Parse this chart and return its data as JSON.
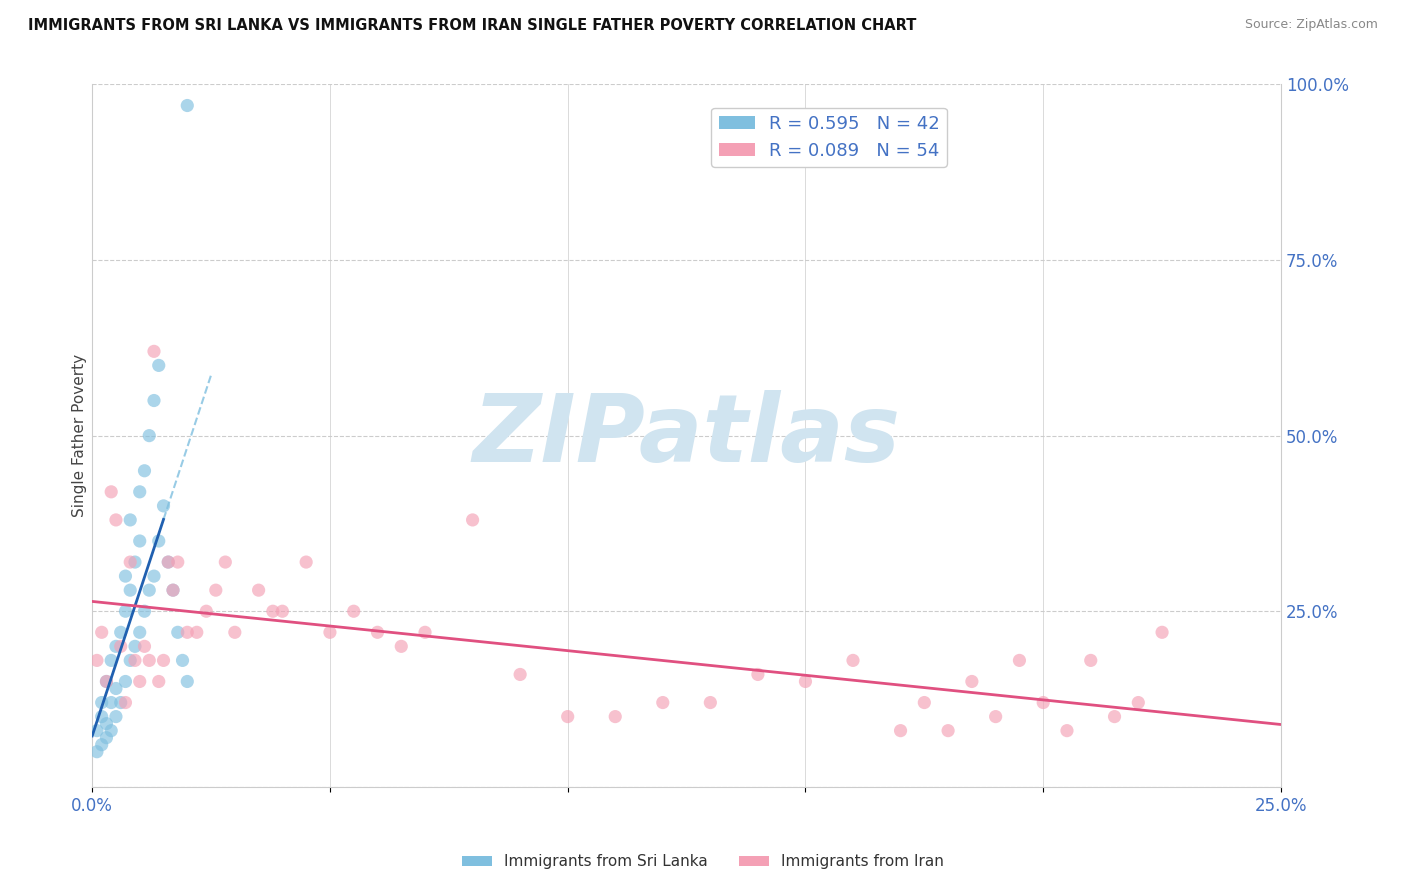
{
  "title": "IMMIGRANTS FROM SRI LANKA VS IMMIGRANTS FROM IRAN SINGLE FATHER POVERTY CORRELATION CHART",
  "source": "Source: ZipAtlas.com",
  "ylabel": "Single Father Poverty",
  "xlim": [
    0.0,
    0.25
  ],
  "ylim": [
    0.0,
    1.0
  ],
  "sri_lanka_color": "#7fbfdf",
  "iran_color": "#f4a0b5",
  "sri_lanka_line_color": "#2060b0",
  "iran_line_color": "#e05080",
  "sri_lanka_R": 0.595,
  "sri_lanka_N": 42,
  "iran_R": 0.089,
  "iran_N": 54,
  "watermark": "ZIPatlas",
  "watermark_color": "#d0e4f0",
  "background_color": "#ffffff",
  "grid_color": "#cccccc",
  "tick_color": "#4472c4",
  "sri_lanka_x": [
    0.001,
    0.001,
    0.002,
    0.002,
    0.002,
    0.003,
    0.003,
    0.003,
    0.004,
    0.004,
    0.004,
    0.005,
    0.005,
    0.005,
    0.006,
    0.006,
    0.007,
    0.007,
    0.007,
    0.008,
    0.008,
    0.008,
    0.009,
    0.009,
    0.01,
    0.01,
    0.01,
    0.011,
    0.011,
    0.012,
    0.012,
    0.013,
    0.013,
    0.014,
    0.014,
    0.015,
    0.016,
    0.017,
    0.018,
    0.019,
    0.02,
    0.02
  ],
  "sri_lanka_y": [
    0.05,
    0.08,
    0.06,
    0.1,
    0.12,
    0.07,
    0.09,
    0.15,
    0.08,
    0.12,
    0.18,
    0.1,
    0.14,
    0.2,
    0.12,
    0.22,
    0.15,
    0.25,
    0.3,
    0.18,
    0.28,
    0.38,
    0.2,
    0.32,
    0.22,
    0.35,
    0.42,
    0.25,
    0.45,
    0.28,
    0.5,
    0.3,
    0.55,
    0.35,
    0.6,
    0.4,
    0.32,
    0.28,
    0.22,
    0.18,
    0.15,
    0.97
  ],
  "iran_x": [
    0.001,
    0.002,
    0.003,
    0.004,
    0.005,
    0.006,
    0.007,
    0.008,
    0.009,
    0.01,
    0.011,
    0.012,
    0.013,
    0.014,
    0.015,
    0.016,
    0.017,
    0.018,
    0.02,
    0.022,
    0.024,
    0.026,
    0.028,
    0.03,
    0.035,
    0.038,
    0.04,
    0.045,
    0.05,
    0.055,
    0.06,
    0.065,
    0.07,
    0.08,
    0.09,
    0.1,
    0.11,
    0.12,
    0.13,
    0.14,
    0.15,
    0.16,
    0.17,
    0.175,
    0.18,
    0.185,
    0.19,
    0.195,
    0.2,
    0.205,
    0.21,
    0.215,
    0.22,
    0.225
  ],
  "iran_y": [
    0.18,
    0.22,
    0.15,
    0.42,
    0.38,
    0.2,
    0.12,
    0.32,
    0.18,
    0.15,
    0.2,
    0.18,
    0.62,
    0.15,
    0.18,
    0.32,
    0.28,
    0.32,
    0.22,
    0.22,
    0.25,
    0.28,
    0.32,
    0.22,
    0.28,
    0.25,
    0.25,
    0.32,
    0.22,
    0.25,
    0.22,
    0.2,
    0.22,
    0.38,
    0.16,
    0.1,
    0.1,
    0.12,
    0.12,
    0.16,
    0.15,
    0.18,
    0.08,
    0.12,
    0.08,
    0.15,
    0.1,
    0.18,
    0.12,
    0.08,
    0.18,
    0.1,
    0.12,
    0.22
  ]
}
